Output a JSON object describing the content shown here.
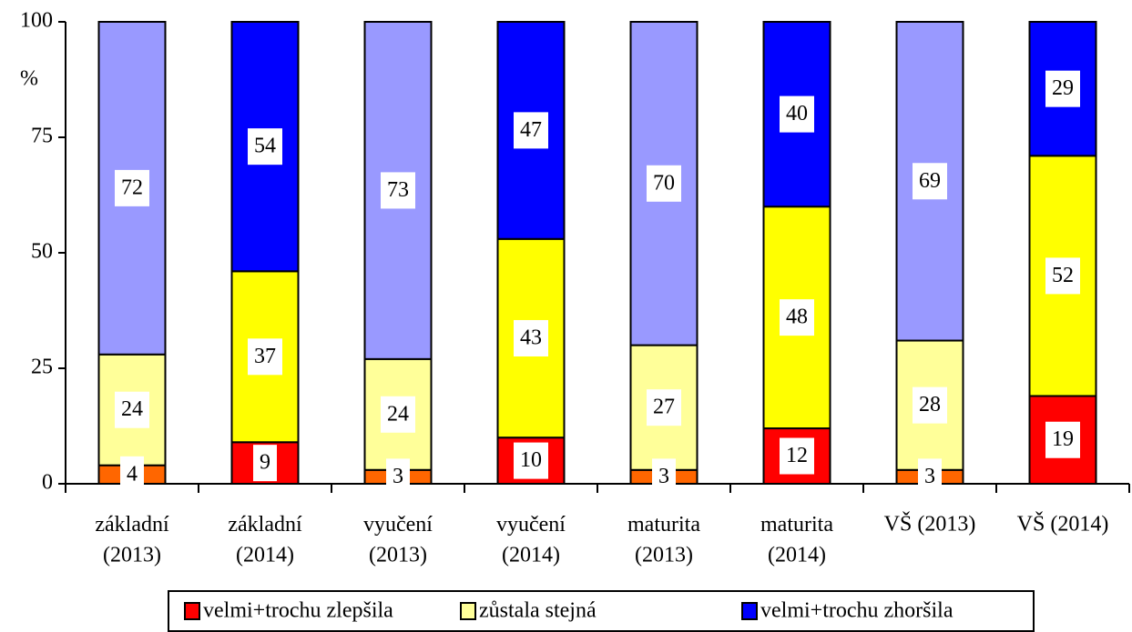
{
  "chart_data": {
    "type": "stacked_bar",
    "y_label": "%",
    "categories": [
      "základní\n(2013)",
      "základní\n(2014)",
      "vyučení\n(2013)",
      "vyučení\n(2014)",
      "maturita\n(2013)",
      "maturita\n(2014)",
      "VŠ (2013)",
      "VŠ (2014)"
    ],
    "series": [
      {
        "name": "velmi+trochu zlepšila",
        "color": "#ff0000",
        "colors": [
          "#ff6600",
          "#ff0000",
          "#ff6600",
          "#ff0000",
          "#ff6600",
          "#ff0000",
          "#ff6600",
          "#ff0000"
        ],
        "values": [
          4,
          9,
          3,
          10,
          3,
          12,
          3,
          19
        ]
      },
      {
        "name": "zůstala stejná",
        "color": "#ffff99",
        "colors": [
          "#ffff99",
          "#ffff00",
          "#ffff99",
          "#ffff00",
          "#ffff99",
          "#ffff00",
          "#ffff99",
          "#ffff00"
        ],
        "values": [
          24,
          37,
          24,
          43,
          27,
          48,
          28,
          52
        ]
      },
      {
        "name": "velmi+trochu zhoršila",
        "color": "#0000ff",
        "colors": [
          "#9999ff",
          "#0000ff",
          "#9999ff",
          "#0000ff",
          "#9999ff",
          "#0000ff",
          "#9999ff",
          "#0000ff"
        ],
        "values": [
          72,
          54,
          73,
          47,
          70,
          40,
          69,
          29
        ]
      }
    ],
    "ylim": [
      0,
      100
    ],
    "yticks": [
      0,
      25,
      50,
      75,
      100
    ],
    "grid": false,
    "legend": "bottom"
  }
}
